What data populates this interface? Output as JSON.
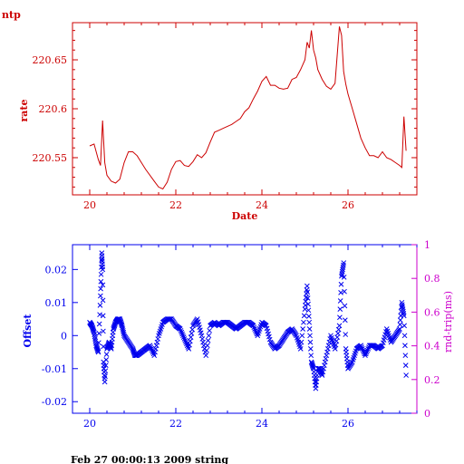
{
  "header": {
    "title": "ntp"
  },
  "footer": {
    "text": "Feb 27 00:00:13 2009 string"
  },
  "colors": {
    "rate": "#cc0000",
    "offset": "#0000ee",
    "rtt": "#cc00cc"
  },
  "chart_data": [
    {
      "type": "line",
      "xlabel": "Date",
      "ylabel": "rate",
      "xlim": [
        19.6,
        27.6
      ],
      "ylim": [
        20.512,
        20.688
      ],
      "xticks": [
        20,
        22,
        24,
        26
      ],
      "yticks": [
        {
          "value": 20.55,
          "label": "220.55"
        },
        {
          "value": 20.6,
          "label": "220.6"
        },
        {
          "value": 20.65,
          "label": "220.65"
        }
      ],
      "series": [
        {
          "x": [
            20.0,
            20.1,
            20.2,
            20.25,
            20.3,
            20.35,
            20.4,
            20.5,
            20.6,
            20.7,
            20.8,
            20.9,
            21.0,
            21.1,
            21.2,
            21.3,
            21.5,
            21.6,
            21.7,
            21.8,
            21.9,
            22.0,
            22.1,
            22.2,
            22.3,
            22.4,
            22.5,
            22.6,
            22.7,
            22.8,
            22.9,
            23.0,
            23.1,
            23.2,
            23.3,
            23.4,
            23.5,
            23.6,
            23.7,
            23.8,
            23.9,
            24.0,
            24.1,
            24.2,
            24.3,
            24.4,
            24.5,
            24.6,
            24.7,
            24.8,
            24.9,
            25.0,
            25.05,
            25.1,
            25.15,
            25.2,
            25.25,
            25.3,
            25.4,
            25.5,
            25.6,
            25.7,
            25.8,
            25.85,
            25.9,
            25.95,
            26.0,
            26.1,
            26.2,
            26.3,
            26.4,
            26.5,
            26.6,
            26.7,
            26.8,
            26.9,
            27.0,
            27.1,
            27.2,
            27.25,
            27.3,
            27.35
          ],
          "values": [
            20.562,
            20.564,
            20.548,
            20.542,
            20.588,
            20.545,
            20.532,
            20.526,
            20.524,
            20.528,
            20.545,
            20.556,
            20.556,
            20.552,
            20.545,
            20.538,
            20.526,
            20.52,
            20.518,
            20.525,
            20.538,
            20.546,
            20.547,
            20.542,
            20.541,
            20.546,
            20.553,
            20.55,
            20.555,
            20.566,
            20.576,
            20.578,
            20.58,
            20.582,
            20.584,
            20.587,
            20.59,
            20.597,
            20.601,
            20.61,
            20.618,
            20.628,
            20.633,
            20.624,
            20.624,
            20.621,
            20.62,
            20.621,
            20.63,
            20.632,
            20.64,
            20.65,
            20.668,
            20.662,
            20.68,
            20.66,
            20.652,
            20.64,
            20.63,
            20.623,
            20.62,
            20.626,
            20.684,
            20.675,
            20.638,
            20.625,
            20.615,
            20.6,
            20.585,
            20.57,
            20.56,
            20.552,
            20.552,
            20.55,
            20.556,
            20.55,
            20.548,
            20.545,
            20.542,
            20.54,
            20.592,
            20.557
          ]
        }
      ]
    },
    {
      "type": "scatter",
      "xlabel": "",
      "ylabel": "Offset",
      "y2label": "rnd-trip(ms)",
      "xlim": [
        19.6,
        27.6
      ],
      "ylim": [
        -0.0235,
        0.0275
      ],
      "y2lim": [
        0,
        1
      ],
      "xticks": [
        20,
        22,
        24,
        26
      ],
      "yticks": [
        {
          "value": -0.02,
          "label": "-0.02"
        },
        {
          "value": -0.01,
          "label": "-0.01"
        },
        {
          "value": 0,
          "label": "0"
        },
        {
          "value": 0.01,
          "label": "0.01"
        },
        {
          "value": 0.02,
          "label": "0.02"
        }
      ],
      "y2ticks": [
        {
          "value": 0,
          "label": "0"
        },
        {
          "value": 0.2,
          "label": "0.2"
        },
        {
          "value": 0.4,
          "label": "0.4"
        },
        {
          "value": 0.6,
          "label": "0.6"
        },
        {
          "value": 0.8,
          "label": "0.8"
        },
        {
          "value": 1,
          "label": "1"
        }
      ],
      "marker": "x",
      "series": [
        {
          "x": [
            20.0,
            20.05,
            20.1,
            20.15,
            20.2,
            20.25,
            20.28,
            20.3,
            20.32,
            20.35,
            20.4,
            20.45,
            20.5,
            20.55,
            20.6,
            20.65,
            20.7,
            20.75,
            20.8,
            20.9,
            21.0,
            21.05,
            21.1,
            21.2,
            21.3,
            21.4,
            21.5,
            21.6,
            21.7,
            21.8,
            21.9,
            22.0,
            22.1,
            22.2,
            22.3,
            22.4,
            22.5,
            22.6,
            22.7,
            22.8,
            22.9,
            23.0,
            23.1,
            23.2,
            23.3,
            23.4,
            23.5,
            23.6,
            23.7,
            23.8,
            23.9,
            24.0,
            24.1,
            24.2,
            24.3,
            24.4,
            24.5,
            24.6,
            24.7,
            24.8,
            24.9,
            25.0,
            25.05,
            25.1,
            25.15,
            25.2,
            25.25,
            25.3,
            25.35,
            25.4,
            25.5,
            25.6,
            25.7,
            25.8,
            25.85,
            25.9,
            25.95,
            26.0,
            26.1,
            26.2,
            26.3,
            26.4,
            26.5,
            26.6,
            26.7,
            26.8,
            26.9,
            27.0,
            27.1,
            27.2,
            27.25,
            27.3,
            27.35
          ],
          "values": [
            0.004,
            0.003,
            0.001,
            -0.003,
            -0.005,
            0.012,
            0.025,
            0.02,
            -0.008,
            -0.014,
            -0.004,
            -0.002,
            -0.004,
            0.002,
            0.004,
            0.005,
            0.005,
            0.003,
            0.0,
            -0.002,
            -0.004,
            -0.006,
            -0.006,
            -0.005,
            -0.004,
            -0.003,
            -0.006,
            0.0,
            0.004,
            0.005,
            0.005,
            0.003,
            0.002,
            -0.001,
            -0.004,
            0.003,
            0.005,
            0.0,
            -0.006,
            0.003,
            0.004,
            0.003,
            0.004,
            0.004,
            0.003,
            0.002,
            0.003,
            0.004,
            0.004,
            0.003,
            0.0,
            0.004,
            0.003,
            -0.002,
            -0.004,
            -0.003,
            -0.001,
            0.001,
            0.002,
            0.0,
            -0.004,
            0.008,
            0.015,
            0.004,
            -0.008,
            -0.01,
            -0.016,
            -0.01,
            -0.01,
            -0.012,
            -0.006,
            0.0,
            -0.004,
            0.003,
            0.018,
            0.022,
            -0.004,
            -0.01,
            -0.008,
            -0.004,
            -0.003,
            -0.006,
            -0.003,
            -0.003,
            -0.004,
            -0.003,
            0.002,
            -0.002,
            0.0,
            0.002,
            0.01,
            0.006,
            -0.012
          ]
        }
      ]
    }
  ]
}
